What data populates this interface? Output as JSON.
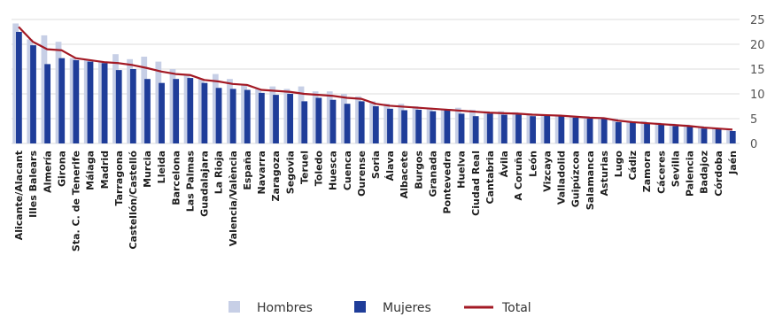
{
  "chart_data": {
    "type": "bar",
    "title": "",
    "xlabel": "",
    "ylabel": "",
    "ylim": [
      0,
      25
    ],
    "yticks": [
      0,
      5,
      10,
      15,
      20,
      25
    ],
    "y_axis_side": "right",
    "grid": true,
    "legend_position": "bottom",
    "highlight_category": "España",
    "colors": {
      "hombres": "#c7cfe6",
      "mujeres": "#1f3d99",
      "total": "#a31924",
      "grid": "#dddddd",
      "highlight_label": "#a31924"
    },
    "categories": [
      "Alicante/Alacant",
      "Illes Balears",
      "Almería",
      "Girona",
      "Sta. C. de Tenerife",
      "Málaga",
      "Madrid",
      "Tarragona",
      "Castellón/Castelló",
      "Murcia",
      "Lleida",
      "Barcelona",
      "Las Palmas",
      "Guadalajara",
      "La Rioja",
      "Valencia/València",
      "España",
      "Navarra",
      "Zaragoza",
      "Segovia",
      "Teruel",
      "Toledo",
      "Huesca",
      "Cuenca",
      "Ourense",
      "Soria",
      "Álava",
      "Albacete",
      "Burgos",
      "Granada",
      "Pontevedra",
      "Huelva",
      "Ciudad Real",
      "Cantabria",
      "Ávila",
      "A Coruña",
      "León",
      "Vizcaya",
      "Valladolid",
      "Guipúzcoa",
      "Salamanca",
      "Asturias",
      "Lugo",
      "Cádiz",
      "Zamora",
      "Cáceres",
      "Sevilla",
      "Palencia",
      "Badajoz",
      "Córdoba",
      "Jaén"
    ],
    "series": [
      {
        "name": "Hombres",
        "kind": "bar",
        "values": [
          24.2,
          21.0,
          21.8,
          20.5,
          17.2,
          16.8,
          16.5,
          18.0,
          17.0,
          17.5,
          16.5,
          15.0,
          14.0,
          13.0,
          14.0,
          13.0,
          12.0,
          11.0,
          11.5,
          11.0,
          11.5,
          10.5,
          10.5,
          10.0,
          9.5,
          8.5,
          8.0,
          8.0,
          7.5,
          7.2,
          7.0,
          7.2,
          6.8,
          6.5,
          6.5,
          6.3,
          6.0,
          5.8,
          5.8,
          5.6,
          5.5,
          5.3,
          5.0,
          4.5,
          4.5,
          4.2,
          4.0,
          3.8,
          3.5,
          3.2,
          3.0
        ]
      },
      {
        "name": "Mujeres",
        "kind": "bar",
        "values": [
          22.5,
          19.8,
          16.0,
          17.2,
          16.8,
          16.5,
          16.2,
          14.8,
          15.0,
          13.0,
          12.2,
          13.0,
          13.2,
          12.2,
          11.2,
          11.0,
          10.8,
          10.2,
          9.8,
          10.0,
          8.5,
          9.2,
          8.8,
          8.0,
          8.5,
          7.5,
          7.0,
          6.7,
          6.8,
          6.5,
          6.8,
          6.0,
          5.5,
          6.0,
          5.8,
          5.8,
          5.5,
          5.7,
          5.5,
          5.2,
          5.0,
          5.0,
          4.3,
          4.2,
          4.0,
          4.0,
          3.5,
          3.5,
          3.0,
          2.9,
          2.5
        ]
      },
      {
        "name": "Total",
        "kind": "line",
        "values": [
          23.5,
          20.5,
          19.0,
          18.8,
          17.2,
          16.8,
          16.4,
          16.2,
          15.8,
          15.2,
          14.5,
          14.0,
          13.8,
          12.8,
          12.5,
          12.0,
          11.8,
          10.8,
          10.6,
          10.4,
          10.0,
          9.8,
          9.6,
          9.2,
          9.0,
          8.0,
          7.6,
          7.4,
          7.2,
          7.0,
          6.8,
          6.6,
          6.4,
          6.2,
          6.1,
          6.0,
          5.8,
          5.7,
          5.6,
          5.4,
          5.2,
          5.1,
          4.6,
          4.3,
          4.1,
          3.9,
          3.7,
          3.5,
          3.2,
          3.0,
          2.8
        ]
      }
    ]
  }
}
